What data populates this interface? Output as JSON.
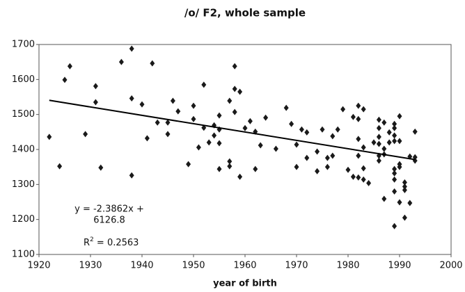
{
  "chart_data": {
    "type": "scatter",
    "title": "/o/ F2, whole sample",
    "x_label": "year of birth",
    "x": [
      1922,
      1924,
      1925,
      1926,
      1929,
      1931,
      1931,
      1932,
      1936,
      1938,
      1938,
      1938,
      1940,
      1941,
      1942,
      1943,
      1945,
      1945,
      1946,
      1947,
      1949,
      1950,
      1950,
      1951,
      1952,
      1952,
      1953,
      1954,
      1954,
      1955,
      1955,
      1955,
      1955,
      1957,
      1957,
      1957,
      1958,
      1958,
      1958,
      1959,
      1959,
      1960,
      1961,
      1962,
      1962,
      1963,
      1964,
      1966,
      1968,
      1969,
      1970,
      1970,
      1971,
      1972,
      1972,
      1974,
      1974,
      1975,
      1976,
      1976,
      1977,
      1977,
      1978,
      1979,
      1980,
      1981,
      1981,
      1982,
      1982,
      1982,
      1982,
      1982,
      1983,
      1983,
      1983,
      1983,
      1984,
      1985,
      1986,
      1986,
      1986,
      1986,
      1986,
      1986,
      1987,
      1987,
      1987,
      1987,
      1988,
      1988,
      1989,
      1989,
      1989,
      1989,
      1989,
      1989,
      1989,
      1989,
      1989,
      1990,
      1990,
      1990,
      1990,
      1990,
      1991,
      1991,
      1991,
      1991,
      1992,
      1992,
      1993,
      1993,
      1993
    ],
    "values": [
      1436,
      1352,
      1599,
      1638,
      1444,
      1581,
      1535,
      1348,
      1650,
      1688,
      1546,
      1326,
      1529,
      1432,
      1646,
      1477,
      1444,
      1477,
      1539,
      1509,
      1358,
      1525,
      1487,
      1406,
      1585,
      1462,
      1420,
      1469,
      1440,
      1497,
      1457,
      1418,
      1344,
      1366,
      1352,
      1539,
      1638,
      1573,
      1507,
      1565,
      1322,
      1461,
      1481,
      1451,
      1344,
      1412,
      1491,
      1402,
      1519,
      1473,
      1414,
      1350,
      1457,
      1449,
      1376,
      1394,
      1338,
      1457,
      1376,
      1350,
      1438,
      1382,
      1457,
      1515,
      1342,
      1493,
      1322,
      1525,
      1487,
      1430,
      1382,
      1320,
      1515,
      1406,
      1346,
      1314,
      1304,
      1420,
      1485,
      1461,
      1436,
      1416,
      1382,
      1368,
      1477,
      1402,
      1386,
      1259,
      1449,
      1420,
      1473,
      1461,
      1440,
      1424,
      1344,
      1332,
      1314,
      1280,
      1181,
      1495,
      1424,
      1358,
      1350,
      1249,
      1306,
      1294,
      1284,
      1205,
      1247,
      1380,
      1451,
      1378,
      1368
    ],
    "color": "#1a1a1a",
    "trendline": {
      "x": [
        1922,
        1993
      ],
      "values": [
        1540.5,
        1371.1
      ],
      "color": "#000000"
    },
    "equation": [
      "y = -2.3862x +",
      "6126.8"
    ],
    "r_squared": {
      "base": "R",
      "sup": "2",
      "rest": " = 0.2563"
    },
    "xlim": [
      1920,
      2000
    ],
    "xticks": [
      1920,
      1930,
      1940,
      1950,
      1960,
      1970,
      1980,
      1990,
      2000
    ],
    "ylim": [
      1100,
      1700
    ],
    "yticks": [
      1100,
      1200,
      1300,
      1400,
      1500,
      1600,
      1700
    ],
    "grid": false
  }
}
